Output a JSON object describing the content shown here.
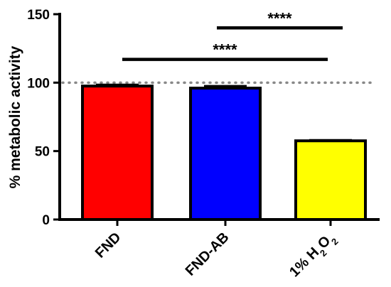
{
  "chart_data": {
    "type": "bar",
    "title": "",
    "xlabel": "",
    "ylabel": "% metabolic activity",
    "ylim": [
      0,
      150
    ],
    "yticks": [
      0,
      50,
      100,
      150
    ],
    "categories": [
      "FND",
      "FND-AB",
      "1% H2O2"
    ],
    "category_parts": [
      [
        {
          "t": "FND",
          "sub": false
        }
      ],
      [
        {
          "t": "FND-AB",
          "sub": false
        }
      ],
      [
        {
          "t": "1% H",
          "sub": false
        },
        {
          "t": "2",
          "sub": true
        },
        {
          "t": "O",
          "sub": false
        },
        {
          "t": "2",
          "sub": true
        }
      ]
    ],
    "values": [
      97.5,
      96,
      57.5
    ],
    "errors": [
      1.0,
      1.5,
      0.5
    ],
    "colors": [
      "#ff0000",
      "#0000ff",
      "#ffff00"
    ],
    "reference_line": {
      "y": 100,
      "style": "dotted",
      "color": "#888888"
    },
    "significance": [
      {
        "from": 0,
        "to": 2,
        "label": "****",
        "y": 117
      },
      {
        "from": 1,
        "to": 2,
        "label": "****",
        "y": 140
      }
    ],
    "grid": false,
    "legend": "none"
  }
}
